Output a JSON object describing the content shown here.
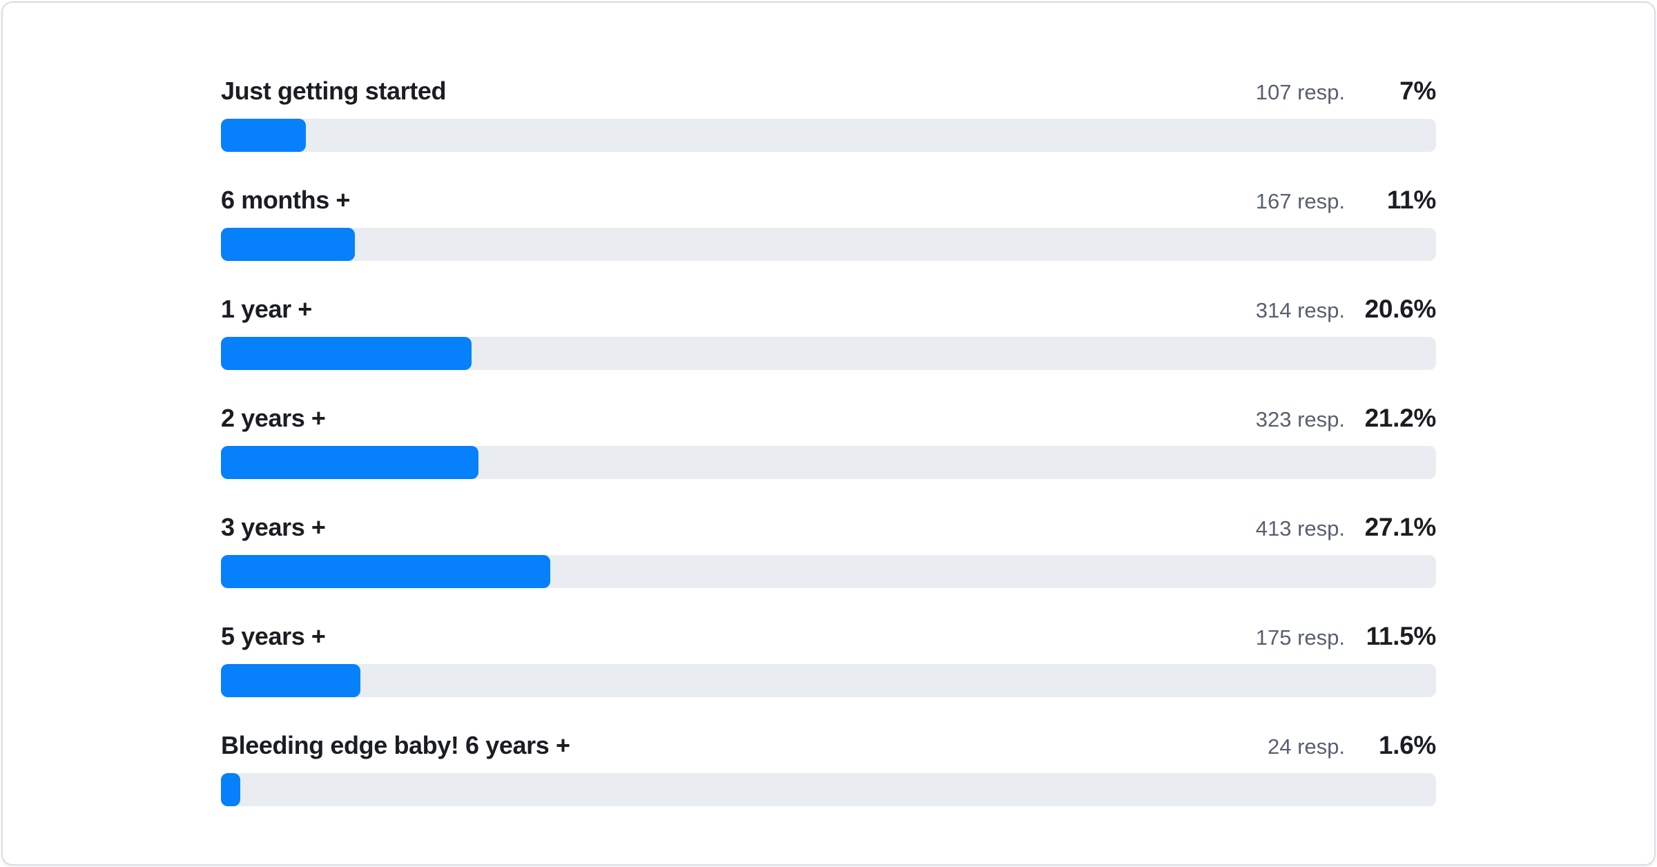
{
  "chart_data": {
    "type": "bar",
    "orientation": "horizontal",
    "unit": "%",
    "xlim": [
      0,
      100
    ],
    "grid": false,
    "legend": false,
    "categories": [
      "Just getting started",
      "6 months +",
      "1 year +",
      "2 years +",
      "3 years +",
      "5 years +",
      "Bleeding edge baby! 6 years +"
    ],
    "values": [
      7,
      11,
      20.6,
      21.2,
      27.1,
      11.5,
      1.6
    ],
    "response_counts": [
      107,
      167,
      314,
      323,
      413,
      175,
      24
    ],
    "rows": [
      {
        "label": "Just getting started",
        "responses": "107 resp.",
        "percent": "7%",
        "value": 7
      },
      {
        "label": "6 months +",
        "responses": "167 resp.",
        "percent": "11%",
        "value": 11
      },
      {
        "label": "1 year +",
        "responses": "314 resp.",
        "percent": "20.6%",
        "value": 20.6
      },
      {
        "label": "2 years +",
        "responses": "323 resp.",
        "percent": "21.2%",
        "value": 21.2
      },
      {
        "label": "3 years +",
        "responses": "413 resp.",
        "percent": "27.1%",
        "value": 27.1
      },
      {
        "label": "5 years +",
        "responses": "175 resp.",
        "percent": "11.5%",
        "value": 11.5
      },
      {
        "label": "Bleeding edge baby! 6 years +",
        "responses": "24 resp.",
        "percent": "1.6%",
        "value": 1.6
      }
    ]
  },
  "colors": {
    "bar_fill": "#0680fb",
    "bar_track": "#e9ecf0",
    "label": "#1a1d21",
    "muted": "#58606e",
    "card_border": "#d9dde1",
    "card_bg": "#ffffff"
  }
}
